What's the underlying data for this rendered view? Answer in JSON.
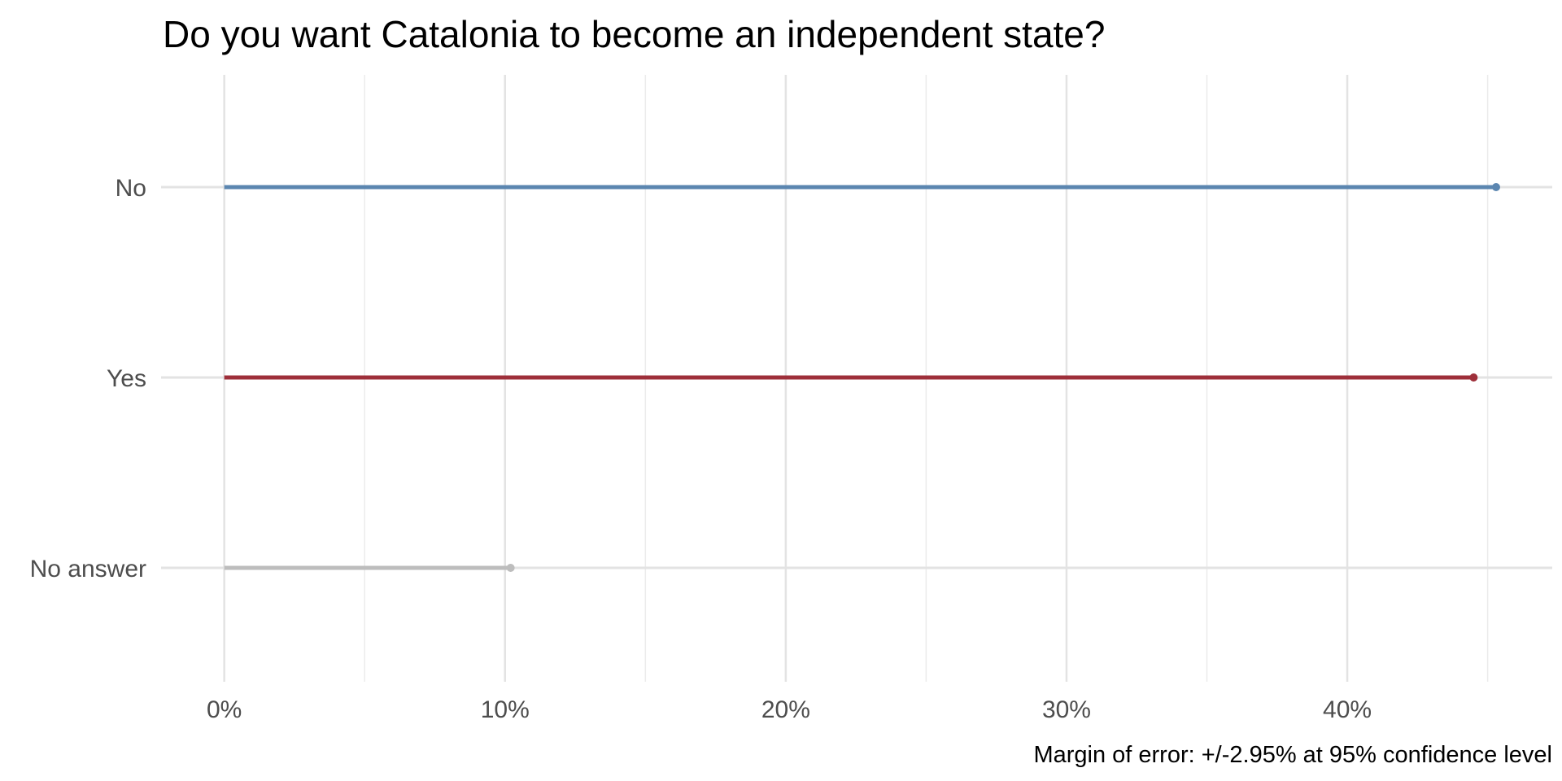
{
  "chart_data": {
    "type": "lollipop",
    "title": "Do you want Catalonia to become an independent state?",
    "caption": "Margin of error: +/-2.95% at 95% confidence level",
    "xlabel": "",
    "ylabel": "",
    "categories": [
      "No",
      "Yes",
      "No answer"
    ],
    "values": [
      45.3,
      44.5,
      10.2
    ],
    "colors": [
      "#5b86b0",
      "#9e2f3a",
      "#bdbdbd"
    ],
    "x_ticks": [
      0,
      10,
      20,
      30,
      40
    ],
    "x_tick_labels": [
      "0%",
      "10%",
      "20%",
      "30%",
      "40%"
    ],
    "xlim": [
      -2.25,
      47.3
    ],
    "grid": true,
    "legend": "none"
  }
}
